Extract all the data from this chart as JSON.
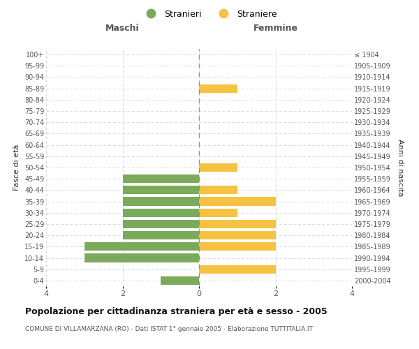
{
  "age_groups": [
    "0-4",
    "5-9",
    "10-14",
    "15-19",
    "20-24",
    "25-29",
    "30-34",
    "35-39",
    "40-44",
    "45-49",
    "50-54",
    "55-59",
    "60-64",
    "65-69",
    "70-74",
    "75-79",
    "80-84",
    "85-89",
    "90-94",
    "95-99",
    "100+"
  ],
  "birth_years": [
    "2000-2004",
    "1995-1999",
    "1990-1994",
    "1985-1989",
    "1980-1984",
    "1975-1979",
    "1970-1974",
    "1965-1969",
    "1960-1964",
    "1955-1959",
    "1950-1954",
    "1945-1949",
    "1940-1944",
    "1935-1939",
    "1930-1934",
    "1925-1929",
    "1920-1924",
    "1915-1919",
    "1910-1914",
    "1905-1909",
    "≤ 1904"
  ],
  "males": [
    1,
    0,
    3,
    3,
    2,
    2,
    2,
    2,
    2,
    2,
    0,
    0,
    0,
    0,
    0,
    0,
    0,
    0,
    0,
    0,
    0
  ],
  "females": [
    0,
    2,
    0,
    2,
    2,
    2,
    1,
    2,
    1,
    0,
    1,
    0,
    0,
    0,
    0,
    0,
    0,
    1,
    0,
    0,
    0
  ],
  "male_color": "#7aaa5a",
  "female_color": "#f5c242",
  "xlim": 4,
  "title": "Popolazione per cittadinanza straniera per età e sesso - 2005",
  "subtitle": "COMUNE DI VILLAMARZANA (RO) - Dati ISTAT 1° gennaio 2005 - Elaborazione TUTTITALIA.IT",
  "ylabel_left": "Fasce di età",
  "ylabel_right": "Anni di nascita",
  "legend_male": "Stranieri",
  "legend_female": "Straniere",
  "col_left": "Maschi",
  "col_right": "Femmine",
  "bg_color": "#ffffff",
  "grid_color": "#d8d8d8",
  "center_line_color": "#999966"
}
